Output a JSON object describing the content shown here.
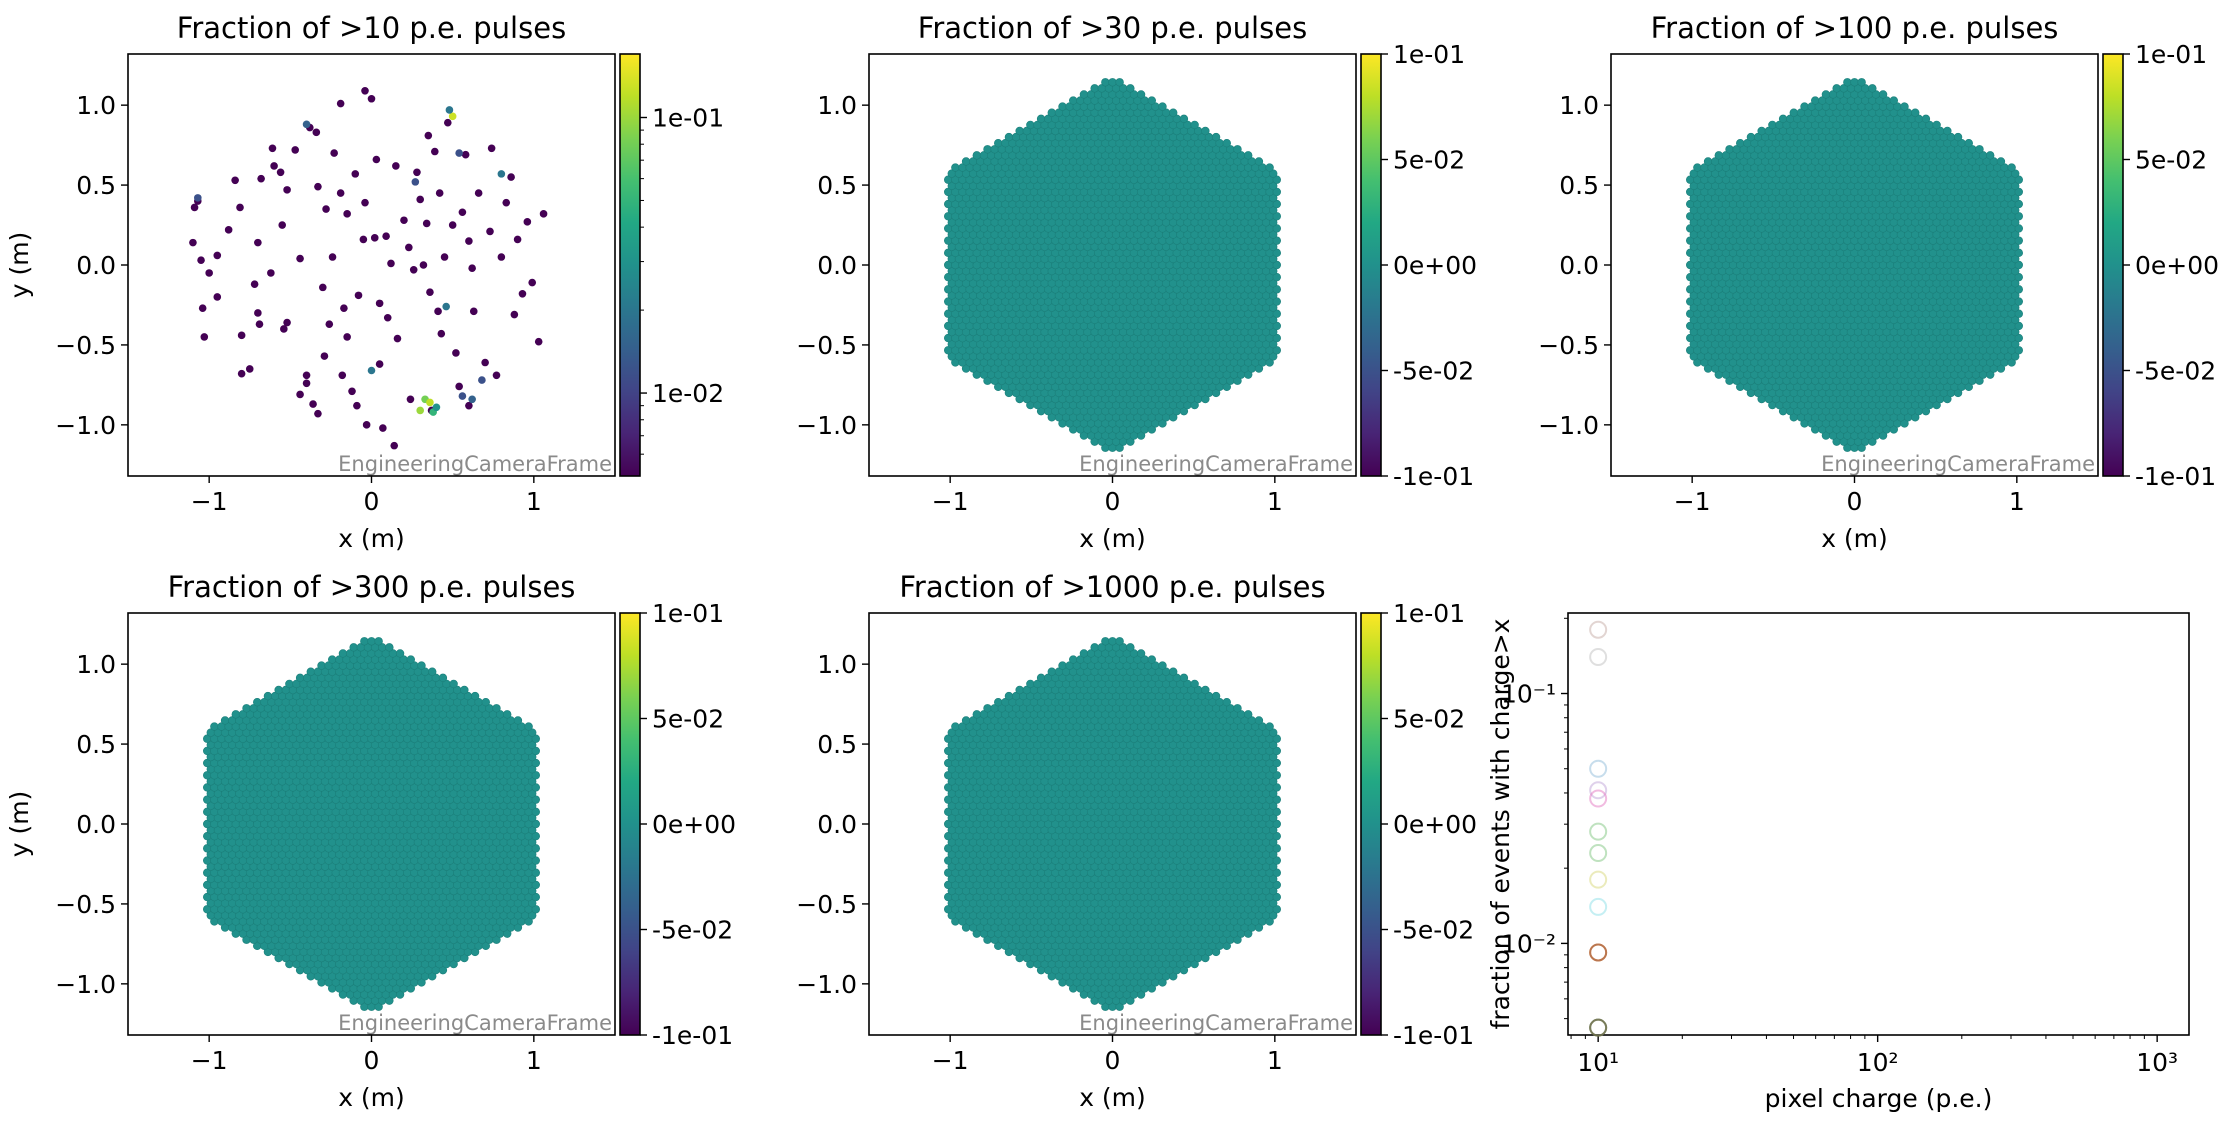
{
  "colors": {
    "viridis": [
      "#440154",
      "#482475",
      "#414487",
      "#355f8d",
      "#2a788e",
      "#21918c",
      "#22a884",
      "#44bf70",
      "#7ad151",
      "#bddf26",
      "#fde725"
    ],
    "camera_fill": "#21918c",
    "pixel_edge": "#1b7f7a",
    "sparse_base": "#440154",
    "scatter_series": [
      "#1f77b4",
      "#ff7f0e",
      "#2ca02c",
      "#d62728",
      "#9467bd",
      "#8c564b",
      "#e377c2",
      "#7f7f7f",
      "#bcbd22",
      "#17becf"
    ]
  },
  "chart_data": [
    {
      "type": "heatmap",
      "title": "Fraction of >10 p.e. pulses",
      "xlabel": "x  (m)",
      "ylabel": "y  (m)",
      "xlim": [
        -1.5,
        1.5
      ],
      "ylim": [
        -1.32,
        1.32
      ],
      "x_ticks": [
        -1,
        0,
        1
      ],
      "y_ticks": [
        -1.0,
        -0.5,
        0.0,
        0.5,
        1.0
      ],
      "x_tick_labels": [
        "−1",
        "0",
        "1"
      ],
      "y_tick_labels": [
        "−1.0",
        "−0.5",
        "0.0",
        "0.5",
        "1.0"
      ],
      "frame_label": "EngineeringCameraFrame",
      "colorbar": {
        "scale": "log",
        "min": 0.005,
        "max": 0.17,
        "ticks": [
          0.01,
          0.1
        ],
        "tick_labels": [
          "1e-02",
          "1e-01"
        ]
      },
      "sparse_points": [
        [
          -1.07,
          0.4
        ],
        [
          -1.09,
          0.36
        ],
        [
          -1.1,
          0.14
        ],
        [
          -1.05,
          0.03
        ],
        [
          -1.0,
          -0.05
        ],
        [
          -1.04,
          -0.27
        ],
        [
          -1.03,
          -0.45
        ],
        [
          -0.95,
          0.06
        ],
        [
          -0.88,
          0.22
        ],
        [
          -0.84,
          0.53
        ],
        [
          -0.81,
          0.36
        ],
        [
          -0.8,
          -0.44
        ],
        [
          -0.8,
          -0.68
        ],
        [
          -0.75,
          -0.65
        ],
        [
          -0.72,
          -0.12
        ],
        [
          -0.7,
          0.14
        ],
        [
          -0.68,
          0.54
        ],
        [
          -0.69,
          -0.37
        ],
        [
          -0.61,
          0.73
        ],
        [
          -0.6,
          0.62
        ],
        [
          -0.56,
          0.58
        ],
        [
          -0.54,
          -0.4
        ],
        [
          -0.52,
          -0.36
        ],
        [
          -0.52,
          0.47
        ],
        [
          -0.47,
          0.72
        ],
        [
          -0.44,
          0.04
        ],
        [
          -0.44,
          -0.81
        ],
        [
          -0.4,
          -0.69
        ],
        [
          -0.4,
          -0.74
        ],
        [
          -0.38,
          0.86
        ],
        [
          -0.36,
          -0.87
        ],
        [
          -0.34,
          0.83
        ],
        [
          -0.33,
          -0.93
        ],
        [
          -0.33,
          0.49
        ],
        [
          -0.29,
          -0.57
        ],
        [
          -0.28,
          0.35
        ],
        [
          -0.26,
          -0.37
        ],
        [
          -0.24,
          0.05
        ],
        [
          -0.23,
          0.7
        ],
        [
          -0.19,
          0.45
        ],
        [
          -0.19,
          1.01
        ],
        [
          -0.18,
          -0.69
        ],
        [
          -0.17,
          -0.27
        ],
        [
          -0.15,
          0.32
        ],
        [
          -0.12,
          -0.79
        ],
        [
          -0.1,
          0.57
        ],
        [
          -0.09,
          -0.88
        ],
        [
          -0.08,
          -0.19
        ],
        [
          -0.05,
          0.16
        ],
        [
          -0.04,
          0.39
        ],
        [
          -0.04,
          1.09
        ],
        [
          -0.03,
          -1.0
        ],
        [
          0.0,
          1.04
        ],
        [
          0.02,
          0.17
        ],
        [
          0.03,
          0.66
        ],
        [
          0.05,
          -0.24
        ],
        [
          0.07,
          -1.02
        ],
        [
          0.09,
          0.18
        ],
        [
          0.12,
          0.01
        ],
        [
          0.14,
          -1.13
        ],
        [
          0.16,
          -0.46
        ],
        [
          0.2,
          0.28
        ],
        [
          0.23,
          0.11
        ],
        [
          0.24,
          -0.84
        ],
        [
          0.26,
          -0.03
        ],
        [
          0.28,
          0.58
        ],
        [
          0.3,
          0.41
        ],
        [
          0.32,
          0.0
        ],
        [
          0.34,
          0.26
        ],
        [
          0.35,
          0.81
        ],
        [
          0.37,
          -0.91
        ],
        [
          0.39,
          0.71
        ],
        [
          0.41,
          -0.29
        ],
        [
          0.43,
          -0.43
        ],
        [
          0.45,
          0.05
        ],
        [
          0.47,
          0.89
        ],
        [
          0.5,
          0.25
        ],
        [
          0.52,
          -0.55
        ],
        [
          0.54,
          -0.76
        ],
        [
          0.56,
          0.33
        ],
        [
          0.58,
          0.69
        ],
        [
          0.6,
          -0.88
        ],
        [
          0.62,
          -0.02
        ],
        [
          0.63,
          -0.29
        ],
        [
          0.66,
          0.45
        ],
        [
          0.7,
          -0.61
        ],
        [
          0.73,
          0.21
        ],
        [
          0.74,
          0.73
        ],
        [
          0.77,
          -0.69
        ],
        [
          0.8,
          0.05
        ],
        [
          0.83,
          0.39
        ],
        [
          0.86,
          0.55
        ],
        [
          0.88,
          -0.31
        ],
        [
          0.9,
          0.16
        ],
        [
          0.93,
          -0.18
        ],
        [
          0.96,
          0.27
        ],
        [
          0.99,
          -0.11
        ],
        [
          1.03,
          -0.48
        ],
        [
          1.06,
          0.32
        ],
        [
          -0.95,
          -0.2
        ],
        [
          -0.62,
          -0.05
        ],
        [
          -0.3,
          -0.14
        ],
        [
          0.1,
          -0.33
        ],
        [
          0.42,
          0.45
        ],
        [
          -0.55,
          0.25
        ],
        [
          0.15,
          0.62
        ],
        [
          -0.15,
          -0.45
        ],
        [
          0.6,
          0.15
        ],
        [
          0.05,
          -0.62
        ],
        [
          -0.7,
          -0.3
        ],
        [
          0.36,
          -0.17
        ]
      ],
      "highlight_points": [
        {
          "x": 0.5,
          "y": 0.93,
          "value": 0.13
        },
        {
          "x": 0.48,
          "y": 0.97,
          "value": 0.02
        },
        {
          "x": 0.3,
          "y": -0.91,
          "value": 0.1
        },
        {
          "x": 0.33,
          "y": -0.84,
          "value": 0.08
        },
        {
          "x": 0.36,
          "y": -0.86,
          "value": 0.12
        },
        {
          "x": 0.38,
          "y": -0.92,
          "value": 0.05
        },
        {
          "x": 0.4,
          "y": -0.89,
          "value": 0.03
        },
        {
          "x": -0.4,
          "y": 0.88,
          "value": 0.015
        },
        {
          "x": -1.07,
          "y": 0.42,
          "value": 0.012
        },
        {
          "x": 0.8,
          "y": 0.57,
          "value": 0.02
        },
        {
          "x": 0.54,
          "y": 0.7,
          "value": 0.012
        },
        {
          "x": 0.27,
          "y": 0.52,
          "value": 0.012
        },
        {
          "x": 0.46,
          "y": -0.26,
          "value": 0.02
        },
        {
          "x": 0.56,
          "y": -0.82,
          "value": 0.012
        },
        {
          "x": 0.62,
          "y": -0.84,
          "value": 0.015
        },
        {
          "x": 0.68,
          "y": -0.72,
          "value": 0.012
        },
        {
          "x": 0.0,
          "y": -0.66,
          "value": 0.02
        }
      ]
    },
    {
      "type": "heatmap",
      "title": "Fraction of >30 p.e. pulses",
      "xlabel": "x  (m)",
      "ylabel": "",
      "xlim": [
        -1.5,
        1.5
      ],
      "ylim": [
        -1.32,
        1.32
      ],
      "x_ticks": [
        -1,
        0,
        1
      ],
      "y_ticks": [
        -1.0,
        -0.5,
        0.0,
        0.5,
        1.0
      ],
      "x_tick_labels": [
        "−1",
        "0",
        "1"
      ],
      "y_tick_labels": [
        "−1.0",
        "−0.5",
        "0.0",
        "0.5",
        "1.0"
      ],
      "frame_label": "EngineeringCameraFrame",
      "colorbar": {
        "scale": "linear",
        "min": -0.1,
        "max": 0.1,
        "ticks": [
          -0.1,
          -0.05,
          0,
          0.05,
          0.1
        ],
        "tick_labels": [
          "-1e-01",
          "-5e-02",
          "0e+00",
          "5e-02",
          "1e-01"
        ]
      },
      "uniform_value": 0
    },
    {
      "type": "heatmap",
      "title": "Fraction of >100 p.e. pulses",
      "xlabel": "x  (m)",
      "ylabel": "",
      "xlim": [
        -1.5,
        1.5
      ],
      "ylim": [
        -1.32,
        1.32
      ],
      "x_ticks": [
        -1,
        0,
        1
      ],
      "y_ticks": [
        -1.0,
        -0.5,
        0.0,
        0.5,
        1.0
      ],
      "x_tick_labels": [
        "−1",
        "0",
        "1"
      ],
      "y_tick_labels": [
        "−1.0",
        "−0.5",
        "0.0",
        "0.5",
        "1.0"
      ],
      "frame_label": "EngineeringCameraFrame",
      "colorbar": {
        "scale": "linear",
        "min": -0.1,
        "max": 0.1,
        "ticks": [
          -0.1,
          -0.05,
          0,
          0.05,
          0.1
        ],
        "tick_labels": [
          "-1e-01",
          "-5e-02",
          "0e+00",
          "5e-02",
          "1e-01"
        ]
      },
      "uniform_value": 0
    },
    {
      "type": "heatmap",
      "title": "Fraction of >300 p.e. pulses",
      "xlabel": "x  (m)",
      "ylabel": "y  (m)",
      "xlim": [
        -1.5,
        1.5
      ],
      "ylim": [
        -1.32,
        1.32
      ],
      "x_ticks": [
        -1,
        0,
        1
      ],
      "y_ticks": [
        -1.0,
        -0.5,
        0.0,
        0.5,
        1.0
      ],
      "x_tick_labels": [
        "−1",
        "0",
        "1"
      ],
      "y_tick_labels": [
        "−1.0",
        "−0.5",
        "0.0",
        "0.5",
        "1.0"
      ],
      "frame_label": "EngineeringCameraFrame",
      "colorbar": {
        "scale": "linear",
        "min": -0.1,
        "max": 0.1,
        "ticks": [
          -0.1,
          -0.05,
          0,
          0.05,
          0.1
        ],
        "tick_labels": [
          "-1e-01",
          "-5e-02",
          "0e+00",
          "5e-02",
          "1e-01"
        ]
      },
      "uniform_value": 0
    },
    {
      "type": "heatmap",
      "title": "Fraction of >1000 p.e. pulses",
      "xlabel": "x  (m)",
      "ylabel": "",
      "xlim": [
        -1.5,
        1.5
      ],
      "ylim": [
        -1.32,
        1.32
      ],
      "x_ticks": [
        -1,
        0,
        1
      ],
      "y_ticks": [
        -1.0,
        -0.5,
        0.0,
        0.5,
        1.0
      ],
      "x_tick_labels": [
        "−1",
        "0",
        "1"
      ],
      "y_tick_labels": [
        "−1.0",
        "−0.5",
        "0.0",
        "0.5",
        "1.0"
      ],
      "frame_label": "EngineeringCameraFrame",
      "colorbar": {
        "scale": "linear",
        "min": -0.1,
        "max": 0.1,
        "ticks": [
          -0.1,
          -0.05,
          0,
          0.05,
          0.1
        ],
        "tick_labels": [
          "-1e-01",
          "-5e-02",
          "0e+00",
          "5e-02",
          "1e-01"
        ]
      },
      "uniform_value": 0
    },
    {
      "type": "scatter",
      "title": "",
      "xlabel": "pixel charge (p.e.)",
      "ylabel": "fraction of events with charge>x",
      "x_scale": "log",
      "y_scale": "log",
      "xlim": [
        7.8,
        1300
      ],
      "ylim": [
        0.0043,
        0.21
      ],
      "x_major_ticks": [
        10,
        100,
        1000
      ],
      "x_tick_labels": [
        "10¹",
        "10²",
        "10³"
      ],
      "y_major_ticks": [
        0.01,
        0.1
      ],
      "y_tick_labels": [
        "10⁻²",
        "10⁻¹"
      ],
      "points": [
        {
          "x": 10,
          "y": 0.18,
          "color": "#8c564b",
          "alpha": 0.25
        },
        {
          "x": 10,
          "y": 0.14,
          "color": "#7f7f7f",
          "alpha": 0.25
        },
        {
          "x": 10,
          "y": 0.05,
          "color": "#1f77b4",
          "alpha": 0.25
        },
        {
          "x": 10,
          "y": 0.041,
          "color": "#9467bd",
          "alpha": 0.3
        },
        {
          "x": 10,
          "y": 0.038,
          "color": "#e377c2",
          "alpha": 0.5
        },
        {
          "x": 10,
          "y": 0.028,
          "color": "#2ca02c",
          "alpha": 0.3
        },
        {
          "x": 10,
          "y": 0.023,
          "color": "#2ca02c",
          "alpha": 0.3
        },
        {
          "x": 10,
          "y": 0.018,
          "color": "#bcbd22",
          "alpha": 0.3
        },
        {
          "x": 10,
          "y": 0.014,
          "color": "#17becf",
          "alpha": 0.25
        },
        {
          "x": 10,
          "y": 0.0092,
          "color": "#ff7f0e",
          "alpha": 0.7
        },
        {
          "x": 10,
          "y": 0.0092,
          "color": "#8c564b",
          "alpha": 0.6
        },
        {
          "x": 10,
          "y": 0.0046,
          "color": "#7f7f7f",
          "alpha": 0.7
        },
        {
          "x": 10,
          "y": 0.0046,
          "color": "#2ca02c",
          "alpha": 0.5
        },
        {
          "x": 10,
          "y": 0.0046,
          "color": "#8c564b",
          "alpha": 0.5
        }
      ]
    }
  ]
}
